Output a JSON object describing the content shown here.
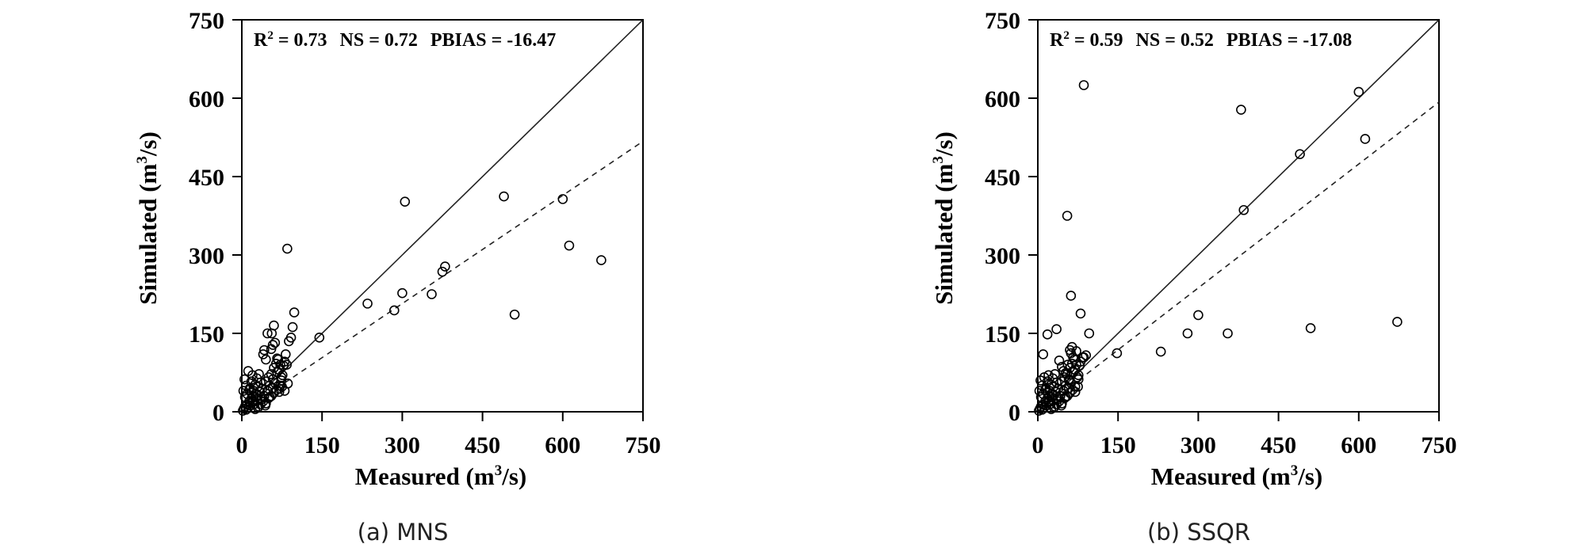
{
  "chart_data": [
    {
      "type": "scatter",
      "caption": "(a) MNS",
      "xlabel_main": "Measured (m",
      "ylabel_main": "Simulated (m",
      "unit_sup": "3",
      "unit_tail": "/s)",
      "xlim": [
        0,
        750
      ],
      "ylim": [
        0,
        750
      ],
      "ticks": [
        0,
        150,
        300,
        450,
        600,
        750
      ],
      "stats": {
        "r2_prefix": "R",
        "r2_sup": "2",
        "r2_value": " = 0.73",
        "ns": "NS = 0.72",
        "pbias": "PBIAS = -16.47"
      },
      "reference_line": {
        "style": "solid",
        "slope": 1
      },
      "fit_line": {
        "style": "dashed",
        "slope": 0.69
      },
      "points": [
        [
          2,
          2
        ],
        [
          4,
          6
        ],
        [
          6,
          10
        ],
        [
          8,
          4
        ],
        [
          10,
          14
        ],
        [
          12,
          8
        ],
        [
          14,
          20
        ],
        [
          16,
          12
        ],
        [
          18,
          25
        ],
        [
          20,
          18
        ],
        [
          22,
          30
        ],
        [
          24,
          15
        ],
        [
          26,
          35
        ],
        [
          28,
          22
        ],
        [
          3,
          40
        ],
        [
          5,
          62
        ],
        [
          8,
          50
        ],
        [
          12,
          78
        ],
        [
          15,
          45
        ],
        [
          18,
          58
        ],
        [
          20,
          70
        ],
        [
          22,
          40
        ],
        [
          25,
          52
        ],
        [
          28,
          64
        ],
        [
          30,
          48
        ],
        [
          32,
          72
        ],
        [
          35,
          56
        ],
        [
          38,
          44
        ],
        [
          6,
          28
        ],
        [
          10,
          34
        ],
        [
          14,
          42
        ],
        [
          18,
          36
        ],
        [
          22,
          46
        ],
        [
          26,
          28
        ],
        [
          30,
          32
        ],
        [
          34,
          38
        ],
        [
          38,
          24
        ],
        [
          42,
          30
        ],
        [
          45,
          58
        ],
        [
          48,
          40
        ],
        [
          50,
          66
        ],
        [
          52,
          50
        ],
        [
          55,
          72
        ],
        [
          58,
          62
        ],
        [
          60,
          84
        ],
        [
          62,
          55
        ],
        [
          64,
          92
        ],
        [
          66,
          76
        ],
        [
          68,
          100
        ],
        [
          70,
          80
        ],
        [
          72,
          90
        ],
        [
          74,
          66
        ],
        [
          76,
          70
        ],
        [
          78,
          88
        ],
        [
          80,
          96
        ],
        [
          82,
          110
        ],
        [
          40,
          110
        ],
        [
          42,
          118
        ],
        [
          45,
          100
        ],
        [
          48,
          150
        ],
        [
          55,
          120
        ],
        [
          56,
          150
        ],
        [
          58,
          128
        ],
        [
          60,
          165
        ],
        [
          62,
          132
        ],
        [
          66,
          102
        ],
        [
          70,
          44
        ],
        [
          72,
          50
        ],
        [
          74,
          60
        ],
        [
          80,
          40
        ],
        [
          84,
          90
        ],
        [
          86,
          54
        ],
        [
          88,
          135
        ],
        [
          92,
          142
        ],
        [
          95,
          162
        ],
        [
          98,
          190
        ],
        [
          30,
          8
        ],
        [
          35,
          14
        ],
        [
          40,
          20
        ],
        [
          45,
          16
        ],
        [
          50,
          26
        ],
        [
          55,
          30
        ],
        [
          60,
          36
        ],
        [
          65,
          42
        ],
        [
          70,
          38
        ],
        [
          75,
          48
        ],
        [
          25,
          5
        ],
        [
          32,
          10
        ],
        [
          44,
          12
        ],
        [
          52,
          28
        ],
        [
          58,
          45
        ],
        [
          85,
          312
        ],
        [
          145,
          142
        ],
        [
          235,
          207
        ],
        [
          285,
          194
        ],
        [
          300,
          227
        ],
        [
          305,
          402
        ],
        [
          355,
          225
        ],
        [
          375,
          268
        ],
        [
          380,
          278
        ],
        [
          490,
          412
        ],
        [
          510,
          186
        ],
        [
          600,
          407
        ],
        [
          612,
          318
        ],
        [
          672,
          290
        ]
      ]
    },
    {
      "type": "scatter",
      "caption": "(b) SSQR",
      "xlabel_main": "Measured (m",
      "ylabel_main": "Simulated (m",
      "unit_sup": "3",
      "unit_tail": "/s)",
      "xlim": [
        0,
        750
      ],
      "ylim": [
        0,
        750
      ],
      "ticks": [
        0,
        150,
        300,
        450,
        600,
        750
      ],
      "stats": {
        "r2_prefix": "R",
        "r2_sup": "2",
        "r2_value": " = 0.59",
        "ns": "NS = 0.52",
        "pbias": "PBIAS = -17.08"
      },
      "reference_line": {
        "style": "solid",
        "slope": 1
      },
      "fit_line": {
        "style": "dashed",
        "slope": 0.79
      },
      "points": [
        [
          2,
          2
        ],
        [
          4,
          6
        ],
        [
          6,
          10
        ],
        [
          8,
          4
        ],
        [
          10,
          14
        ],
        [
          12,
          8
        ],
        [
          14,
          20
        ],
        [
          16,
          12
        ],
        [
          18,
          25
        ],
        [
          20,
          18
        ],
        [
          22,
          30
        ],
        [
          24,
          15
        ],
        [
          26,
          35
        ],
        [
          28,
          22
        ],
        [
          3,
          40
        ],
        [
          5,
          60
        ],
        [
          8,
          50
        ],
        [
          12,
          66
        ],
        [
          15,
          45
        ],
        [
          18,
          58
        ],
        [
          20,
          70
        ],
        [
          22,
          40
        ],
        [
          25,
          52
        ],
        [
          28,
          64
        ],
        [
          30,
          48
        ],
        [
          32,
          72
        ],
        [
          35,
          56
        ],
        [
          38,
          44
        ],
        [
          6,
          28
        ],
        [
          10,
          34
        ],
        [
          14,
          42
        ],
        [
          18,
          36
        ],
        [
          22,
          46
        ],
        [
          26,
          28
        ],
        [
          30,
          32
        ],
        [
          34,
          38
        ],
        [
          38,
          24
        ],
        [
          42,
          30
        ],
        [
          45,
          58
        ],
        [
          48,
          40
        ],
        [
          50,
          66
        ],
        [
          52,
          50
        ],
        [
          55,
          72
        ],
        [
          58,
          62
        ],
        [
          60,
          84
        ],
        [
          62,
          55
        ],
        [
          64,
          92
        ],
        [
          66,
          76
        ],
        [
          68,
          100
        ],
        [
          70,
          80
        ],
        [
          72,
          90
        ],
        [
          74,
          66
        ],
        [
          76,
          70
        ],
        [
          78,
          88
        ],
        [
          80,
          96
        ],
        [
          84,
          104
        ],
        [
          10,
          110
        ],
        [
          18,
          148
        ],
        [
          35,
          158
        ],
        [
          40,
          98
        ],
        [
          45,
          86
        ],
        [
          48,
          78
        ],
        [
          52,
          74
        ],
        [
          56,
          90
        ],
        [
          58,
          60
        ],
        [
          60,
          118
        ],
        [
          62,
          112
        ],
        [
          64,
          124
        ],
        [
          66,
          104
        ],
        [
          70,
          48
        ],
        [
          72,
          116
        ],
        [
          76,
          62
        ],
        [
          80,
          188
        ],
        [
          86,
          104
        ],
        [
          90,
          108
        ],
        [
          96,
          150
        ],
        [
          30,
          8
        ],
        [
          35,
          14
        ],
        [
          40,
          20
        ],
        [
          45,
          16
        ],
        [
          50,
          26
        ],
        [
          55,
          30
        ],
        [
          60,
          36
        ],
        [
          65,
          42
        ],
        [
          70,
          38
        ],
        [
          75,
          48
        ],
        [
          25,
          5
        ],
        [
          32,
          10
        ],
        [
          44,
          12
        ],
        [
          52,
          28
        ],
        [
          58,
          45
        ],
        [
          55,
          375
        ],
        [
          62,
          222
        ],
        [
          86,
          625
        ],
        [
          148,
          112
        ],
        [
          230,
          115
        ],
        [
          280,
          150
        ],
        [
          300,
          185
        ],
        [
          355,
          150
        ],
        [
          380,
          578
        ],
        [
          385,
          386
        ],
        [
          490,
          493
        ],
        [
          510,
          160
        ],
        [
          600,
          612
        ],
        [
          612,
          522
        ],
        [
          672,
          172
        ]
      ]
    }
  ]
}
